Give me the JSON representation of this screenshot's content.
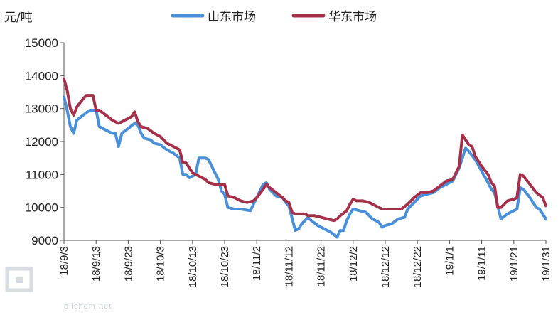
{
  "chart_data": {
    "type": "line",
    "ylabel": "元/吨",
    "ylim": [
      9000,
      15000
    ],
    "yticks": [
      9000,
      10000,
      11000,
      12000,
      13000,
      14000,
      15000
    ],
    "xlim": [
      "18/9/3",
      "19/1/31"
    ],
    "xticks": [
      "18/9/3",
      "18/9/13",
      "18/9/23",
      "18/10/3",
      "18/10/13",
      "18/10/23",
      "18/11/2",
      "18/11/12",
      "18/11/22",
      "18/12/2",
      "18/12/12",
      "18/12/22",
      "19/1/1",
      "19/1/11",
      "19/1/21",
      "19/1/31"
    ],
    "grid": false,
    "legend_position": "top",
    "series": [
      {
        "name": "山东市场",
        "color": "#4a90d9",
        "points": [
          [
            "18/9/3",
            13350
          ],
          [
            "18/9/4",
            12950
          ],
          [
            "18/9/5",
            12450
          ],
          [
            "18/9/6",
            12250
          ],
          [
            "18/9/7",
            12650
          ],
          [
            "18/9/9",
            12800
          ],
          [
            "18/9/11",
            12950
          ],
          [
            "18/9/13",
            12950
          ],
          [
            "18/9/14",
            12450
          ],
          [
            "18/9/17",
            12300
          ],
          [
            "18/9/18",
            12250
          ],
          [
            "18/9/19",
            12250
          ],
          [
            "18/9/20",
            11850
          ],
          [
            "18/9/21",
            12250
          ],
          [
            "18/9/23",
            12400
          ],
          [
            "18/9/25",
            12550
          ],
          [
            "18/9/26",
            12500
          ],
          [
            "18/9/27",
            12250
          ],
          [
            "18/9/28",
            12100
          ],
          [
            "18/9/30",
            12050
          ],
          [
            "18/10/1",
            11950
          ],
          [
            "18/10/3",
            11900
          ],
          [
            "18/10/5",
            11750
          ],
          [
            "18/10/7",
            11650
          ],
          [
            "18/10/9",
            11500
          ],
          [
            "18/10/10",
            11000
          ],
          [
            "18/10/11",
            11000
          ],
          [
            "18/10/12",
            10900
          ],
          [
            "18/10/14",
            11000
          ],
          [
            "18/10/15",
            11500
          ],
          [
            "18/10/17",
            11500
          ],
          [
            "18/10/18",
            11450
          ],
          [
            "18/10/19",
            11250
          ],
          [
            "18/10/21",
            10850
          ],
          [
            "18/10/22",
            10500
          ],
          [
            "18/10/23",
            10400
          ],
          [
            "18/10/24",
            10000
          ],
          [
            "18/10/26",
            9950
          ],
          [
            "18/10/28",
            9950
          ],
          [
            "18/10/31",
            9900
          ],
          [
            "18/11/1",
            10100
          ],
          [
            "18/11/2",
            10300
          ],
          [
            "18/11/4",
            10700
          ],
          [
            "18/11/5",
            10750
          ],
          [
            "18/11/6",
            10550
          ],
          [
            "18/11/8",
            10350
          ],
          [
            "18/11/10",
            10300
          ],
          [
            "18/11/11",
            10150
          ],
          [
            "18/11/12",
            10050
          ],
          [
            "18/11/14",
            9300
          ],
          [
            "18/11/15",
            9350
          ],
          [
            "18/11/16",
            9500
          ],
          [
            "18/11/18",
            9700
          ],
          [
            "18/11/19",
            9600
          ],
          [
            "18/11/21",
            9450
          ],
          [
            "18/11/23",
            9350
          ],
          [
            "18/11/25",
            9250
          ],
          [
            "18/11/27",
            9100
          ],
          [
            "18/11/28",
            9300
          ],
          [
            "18/11/29",
            9300
          ],
          [
            "18/11/30",
            9600
          ],
          [
            "18/12/1",
            9800
          ],
          [
            "18/12/2",
            9950
          ],
          [
            "18/12/4",
            9900
          ],
          [
            "18/12/6",
            9850
          ],
          [
            "18/12/8",
            9650
          ],
          [
            "18/12/10",
            9550
          ],
          [
            "18/12/11",
            9400
          ],
          [
            "18/12/12",
            9450
          ],
          [
            "18/12/14",
            9500
          ],
          [
            "18/12/16",
            9650
          ],
          [
            "18/12/18",
            9700
          ],
          [
            "18/12/19",
            9950
          ],
          [
            "18/12/21",
            10150
          ],
          [
            "18/12/23",
            10350
          ],
          [
            "18/12/25",
            10400
          ],
          [
            "18/12/27",
            10450
          ],
          [
            "18/12/29",
            10600
          ],
          [
            "18/12/31",
            10700
          ],
          [
            "19/1/2",
            10800
          ],
          [
            "19/1/4",
            11200
          ],
          [
            "19/1/6",
            11800
          ],
          [
            "19/1/7",
            11700
          ],
          [
            "19/1/9",
            11450
          ],
          [
            "19/1/11",
            11100
          ],
          [
            "19/1/13",
            10750
          ],
          [
            "19/1/14",
            10550
          ],
          [
            "19/1/15",
            10450
          ],
          [
            "19/1/17",
            9650
          ],
          [
            "19/1/19",
            9800
          ],
          [
            "19/1/21",
            9900
          ],
          [
            "19/1/22",
            9950
          ],
          [
            "19/1/23",
            10600
          ],
          [
            "19/1/24",
            10550
          ],
          [
            "19/1/26",
            10300
          ],
          [
            "19/1/28",
            10000
          ],
          [
            "19/1/29",
            9950
          ],
          [
            "19/1/31",
            9650
          ]
        ]
      },
      {
        "name": "华东市场",
        "color": "#a5304a",
        "points": [
          [
            "18/9/3",
            13900
          ],
          [
            "18/9/4",
            13550
          ],
          [
            "18/9/5",
            13000
          ],
          [
            "18/9/6",
            12800
          ],
          [
            "18/9/7",
            13050
          ],
          [
            "18/9/9",
            13300
          ],
          [
            "18/9/10",
            13400
          ],
          [
            "18/9/12",
            13400
          ],
          [
            "18/9/13",
            12950
          ],
          [
            "18/9/14",
            12950
          ],
          [
            "18/9/16",
            12800
          ],
          [
            "18/9/18",
            12650
          ],
          [
            "18/9/20",
            12550
          ],
          [
            "18/9/21",
            12600
          ],
          [
            "18/9/23",
            12700
          ],
          [
            "18/9/24",
            12750
          ],
          [
            "18/9/25",
            12900
          ],
          [
            "18/9/26",
            12600
          ],
          [
            "18/9/27",
            12450
          ],
          [
            "18/9/29",
            12400
          ],
          [
            "18/10/1",
            12250
          ],
          [
            "18/10/3",
            12150
          ],
          [
            "18/10/5",
            11950
          ],
          [
            "18/10/7",
            11850
          ],
          [
            "18/10/9",
            11750
          ],
          [
            "18/10/10",
            11350
          ],
          [
            "18/10/11",
            11350
          ],
          [
            "18/10/12",
            11200
          ],
          [
            "18/10/13",
            11050
          ],
          [
            "18/10/15",
            10950
          ],
          [
            "18/10/17",
            10850
          ],
          [
            "18/10/18",
            10750
          ],
          [
            "18/10/20",
            10700
          ],
          [
            "18/10/23",
            10700
          ],
          [
            "18/10/24",
            10350
          ],
          [
            "18/10/26",
            10300
          ],
          [
            "18/10/28",
            10200
          ],
          [
            "18/10/30",
            10150
          ],
          [
            "18/11/1",
            10200
          ],
          [
            "18/11/2",
            10300
          ],
          [
            "18/11/4",
            10550
          ],
          [
            "18/11/5",
            10700
          ],
          [
            "18/11/6",
            10600
          ],
          [
            "18/11/8",
            10450
          ],
          [
            "18/11/10",
            10300
          ],
          [
            "18/11/11",
            10200
          ],
          [
            "18/11/12",
            10150
          ],
          [
            "18/11/13",
            9850
          ],
          [
            "18/11/14",
            9800
          ],
          [
            "18/11/17",
            9800
          ],
          [
            "18/11/18",
            9750
          ],
          [
            "18/11/20",
            9750
          ],
          [
            "18/11/22",
            9700
          ],
          [
            "18/11/24",
            9650
          ],
          [
            "18/11/26",
            9600
          ],
          [
            "18/11/27",
            9650
          ],
          [
            "18/11/28",
            9750
          ],
          [
            "18/11/30",
            9900
          ],
          [
            "18/12/1",
            10100
          ],
          [
            "18/12/2",
            10250
          ],
          [
            "18/12/3",
            10200
          ],
          [
            "18/12/5",
            10200
          ],
          [
            "18/12/7",
            10150
          ],
          [
            "18/12/9",
            10050
          ],
          [
            "18/12/11",
            9950
          ],
          [
            "18/12/13",
            9950
          ],
          [
            "18/12/15",
            9950
          ],
          [
            "18/12/17",
            9950
          ],
          [
            "18/12/19",
            10100
          ],
          [
            "18/12/21",
            10300
          ],
          [
            "18/12/23",
            10450
          ],
          [
            "18/12/25",
            10450
          ],
          [
            "18/12/27",
            10500
          ],
          [
            "18/12/29",
            10650
          ],
          [
            "18/12/31",
            10800
          ],
          [
            "19/1/2",
            10850
          ],
          [
            "19/1/4",
            11250
          ],
          [
            "19/1/5",
            12200
          ],
          [
            "19/1/6",
            12050
          ],
          [
            "19/1/7",
            11900
          ],
          [
            "19/1/8",
            11850
          ],
          [
            "19/1/9",
            11550
          ],
          [
            "19/1/11",
            11250
          ],
          [
            "19/1/13",
            11000
          ],
          [
            "19/1/14",
            10750
          ],
          [
            "19/1/15",
            10650
          ],
          [
            "19/1/16",
            10000
          ],
          [
            "19/1/17",
            10000
          ],
          [
            "19/1/19",
            10200
          ],
          [
            "19/1/21",
            10250
          ],
          [
            "19/1/22",
            10300
          ],
          [
            "19/1/23",
            11000
          ],
          [
            "19/1/24",
            10950
          ],
          [
            "19/1/26",
            10700
          ],
          [
            "19/1/28",
            10450
          ],
          [
            "19/1/30",
            10300
          ],
          [
            "19/1/31",
            10050
          ]
        ]
      }
    ]
  },
  "watermark": {
    "brand": "oilchem.net"
  }
}
